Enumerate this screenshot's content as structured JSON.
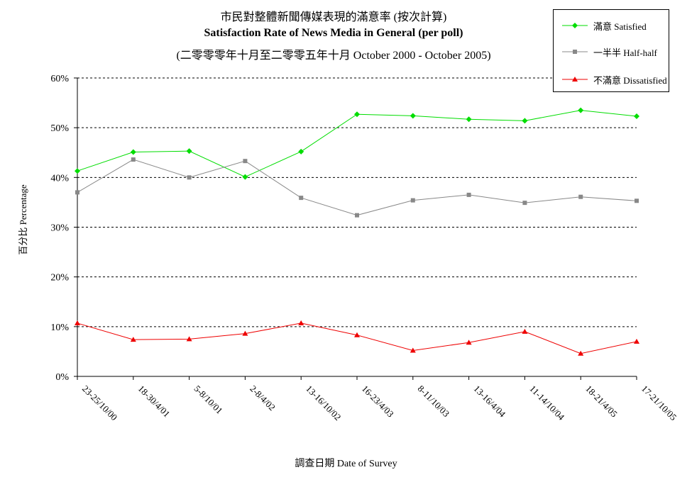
{
  "titles": {
    "line1": "市民對整體新聞傳媒表現的滿意率 (按次計算)",
    "line2": "Satisfaction Rate of News Media in General (per poll)",
    "line3": "(二零零零年十月至二零零五年十月 October 2000 - October 2005)"
  },
  "chart_data": {
    "type": "line",
    "title": "Satisfaction Rate of News Media in General (per poll)",
    "xlabel": "調查日期 Date of Survey",
    "ylabel": "百分比 Percentage",
    "ylim": [
      0,
      60
    ],
    "yticks": [
      "0%",
      "10%",
      "20%",
      "30%",
      "40%",
      "50%",
      "60%"
    ],
    "grid": "horizontal dashed",
    "legend_position": "top-right",
    "categories": [
      "23-25/10/00",
      "18-30/4/01",
      "5-8/10/01",
      "2-8/4/02",
      "13-16/10/02",
      "16-23/4/03",
      "8-11/10/03",
      "13-16/4/04",
      "11-14/10/04",
      "18-21/4/05",
      "17-21/10/05"
    ],
    "series": [
      {
        "name": "滿意 Satisfied",
        "color": "#00dd00",
        "marker": "diamond",
        "values": [
          41.3,
          45.1,
          45.3,
          40.1,
          45.2,
          52.7,
          52.4,
          51.7,
          51.4,
          53.5,
          52.3
        ]
      },
      {
        "name": "一半半 Half-half",
        "color": "#888888",
        "marker": "square",
        "values": [
          37.0,
          43.6,
          40.0,
          43.3,
          35.9,
          32.4,
          35.4,
          36.5,
          34.9,
          36.1,
          35.3
        ]
      },
      {
        "name": "不滿意 Dissatisfied",
        "color": "#ee0000",
        "marker": "triangle",
        "values": [
          10.7,
          7.4,
          7.5,
          8.6,
          10.7,
          8.3,
          5.2,
          6.8,
          9.0,
          4.6,
          7.0
        ]
      }
    ]
  }
}
